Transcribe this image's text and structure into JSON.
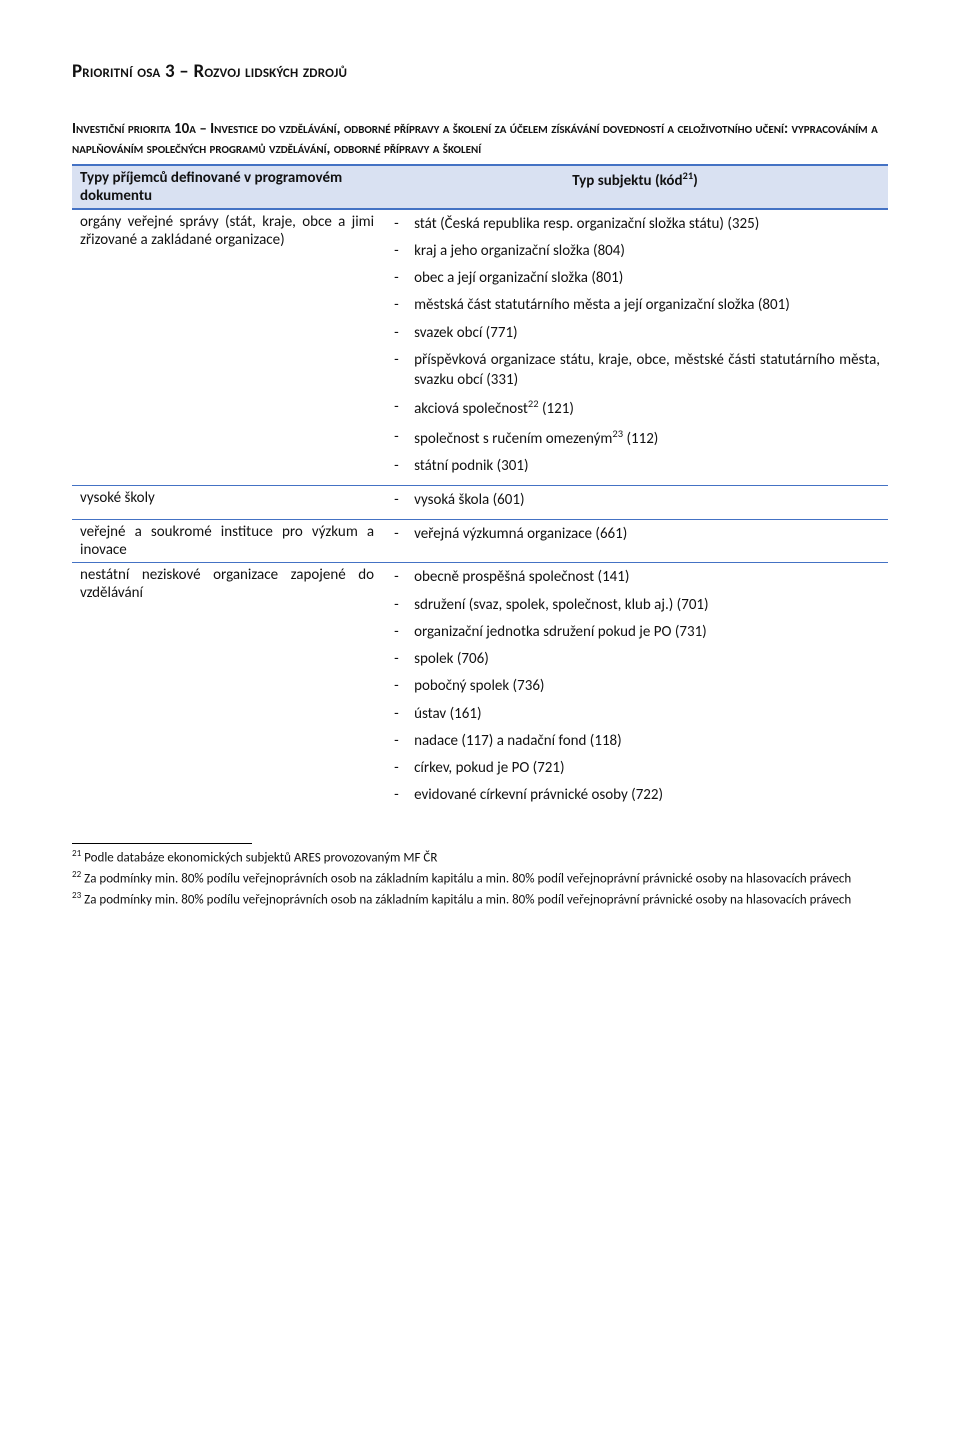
{
  "section_title": "Prioritní osa 3 – Rozvoj lidských zdrojů",
  "priority_title_main": "Investiční priorita 10a – Investice do vzdělávání, odborné přípravy a školení za účelem získávání dovedností a celoživotního učení: vypracováním a naplňováním společných programů vzdělávání, odborné přípravy a školení",
  "table": {
    "header_left": "Typy příjemců definované v programovém dokumentu",
    "header_right_prefix": "Typ subjektu (kód",
    "header_right_sup": "21",
    "header_right_suffix": ")",
    "rows": [
      {
        "left": "orgány veřejné správy (stát, kraje, obce a jimi zřizované a zakládané organizace)",
        "items": [
          "stát (Česká republika resp. organizační složka státu) (325)",
          "kraj a jeho organizační složka (804)",
          "obec a její organizační složka (801)",
          "městská část statutárního města a její organizační složka (801)",
          "svazek obcí (771)",
          "příspěvková organizace státu, kraje, obce, městské části statutárního města, svazku obcí (331)",
          "akciová společnost22 (121)",
          "společnost s ručením omezeným23  (112)",
          "státní podnik (301)"
        ],
        "sup_map": {
          "6": "22",
          "7": "23"
        }
      },
      {
        "left": "vysoké školy",
        "items": [
          "vysoká škola (601)"
        ]
      },
      {
        "left": "veřejné a soukromé instituce pro výzkum a inovace",
        "items": [
          "veřejná výzkumná organizace (661)"
        ]
      },
      {
        "left": "nestátní neziskové organizace zapojené do vzdělávání",
        "items": [
          "obecně prospěšná společnost (141)",
          "sdružení (svaz, spolek, společnost, klub aj.) (701)",
          "organizační jednotka sdružení pokud je PO (731)",
          "spolek (706)",
          "pobočný spolek (736)",
          "ústav (161)",
          "nadace (117) a nadační fond (118)",
          "církev, pokud je PO (721)",
          "evidované církevní právnické osoby (722)"
        ]
      }
    ]
  },
  "footnotes": {
    "f21": "Podle databáze ekonomických subjektů ARES provozovaným MF ČR",
    "f22": "Za podmínky min. 80% podílu veřejnoprávních osob na základním kapitálu a min. 80% podíl veřejnoprávní právnické osoby na hlasovacích právech",
    "f23": "Za podmínky min. 80% podílu veřejnoprávních osob na základním kapitálu a min. 80% podíl veřejnoprávní právnické osoby na hlasovacích právech"
  },
  "colors": {
    "header_bg": "#d9e1f2",
    "border": "#4472c4"
  }
}
